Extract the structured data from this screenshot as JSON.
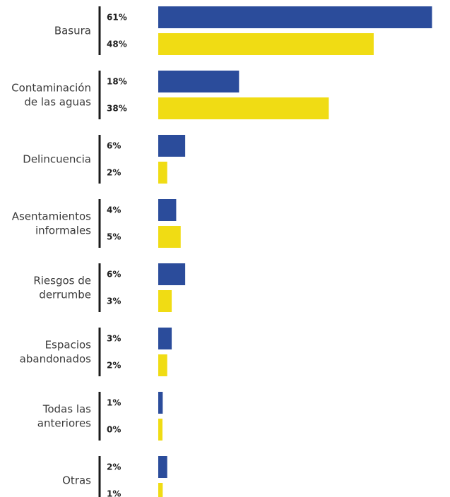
{
  "chart_data": {
    "type": "bar",
    "orientation": "horizontal",
    "categories": [
      [
        "Basura"
      ],
      [
        "Contaminación",
        "de las aguas"
      ],
      [
        "Delincuencia"
      ],
      [
        "Asentamientos",
        "informales"
      ],
      [
        "Riesgos de",
        "derrumbe"
      ],
      [
        "Espacios",
        "abandonados"
      ],
      [
        "Todas las",
        "anteriores"
      ],
      [
        "Otras"
      ]
    ],
    "series": [
      {
        "color": "#2b4c9b",
        "values": [
          61,
          18,
          6,
          4,
          6,
          3,
          1,
          2
        ],
        "labels": [
          "61%",
          "18%",
          "6%",
          "4%",
          "6%",
          "3%",
          "1%",
          "2%"
        ]
      },
      {
        "color": "#f0dc14",
        "values": [
          48,
          38,
          2,
          5,
          3,
          2,
          0,
          1
        ],
        "labels": [
          "48%",
          "38%",
          "2%",
          "5%",
          "3%",
          "2%",
          "0%",
          "1%"
        ]
      }
    ],
    "xlim": [
      0,
      65
    ],
    "grid": false,
    "title": "",
    "xlabel": "",
    "ylabel": ""
  }
}
